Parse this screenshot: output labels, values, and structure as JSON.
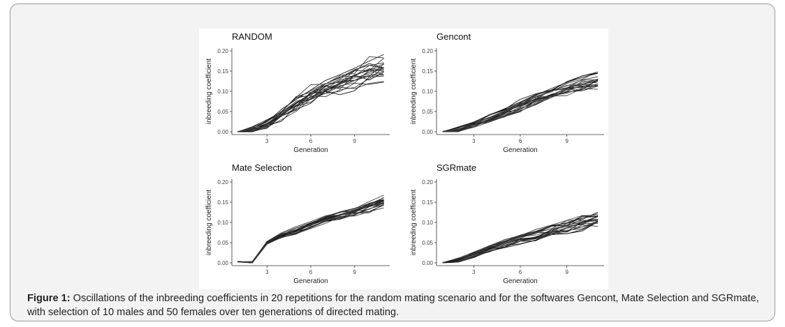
{
  "caption": {
    "label": "Figure 1:",
    "text": " Oscillations of the inbreeding coefficients in 20 repetitions for the random mating scenario and for the softwares Gencont, Mate Selection and SGRmate, with selection of 10 males and 50 females over ten generations of directed mating."
  },
  "chart_data": [
    {
      "type": "line",
      "title": "RANDOM",
      "xlabel": "Generation",
      "ylabel": "inbreeding coefficient",
      "x": [
        1,
        2,
        3,
        4,
        5,
        6,
        7,
        8,
        9,
        10,
        11
      ],
      "xticks": [
        "3",
        "6",
        "9"
      ],
      "yticks": [
        "0.00",
        "0.05",
        "0.10",
        "0.15",
        "0.20"
      ],
      "ylim": [
        0,
        0.2
      ],
      "mean": [
        0,
        0.004,
        0.02,
        0.045,
        0.07,
        0.092,
        0.108,
        0.122,
        0.135,
        0.148,
        0.16
      ],
      "spread": 0.03,
      "n_series": 20
    },
    {
      "type": "line",
      "title": "Gencont",
      "xlabel": "Generation",
      "ylabel": "inbreeding coefficient",
      "x": [
        1,
        2,
        3,
        4,
        5,
        6,
        7,
        8,
        9,
        10,
        11
      ],
      "xticks": [
        "3",
        "6",
        "9"
      ],
      "yticks": [
        "0.00",
        "0.05",
        "0.10",
        "0.15",
        "0.20"
      ],
      "ylim": [
        0,
        0.2
      ],
      "mean": [
        0,
        0.005,
        0.018,
        0.032,
        0.048,
        0.064,
        0.08,
        0.095,
        0.108,
        0.12,
        0.13
      ],
      "spread": 0.018,
      "n_series": 20
    },
    {
      "type": "line",
      "title": "Mate Selection",
      "xlabel": "Generation",
      "ylabel": "inbreeding coefficient",
      "x": [
        1,
        2,
        3,
        4,
        5,
        6,
        7,
        8,
        9,
        10,
        11
      ],
      "xticks": [
        "3",
        "6",
        "9"
      ],
      "yticks": [
        "0.00",
        "0.05",
        "0.10",
        "0.15",
        "0.20"
      ],
      "ylim": [
        0,
        0.2
      ],
      "mean": [
        0.003,
        0.001,
        0.05,
        0.068,
        0.08,
        0.095,
        0.108,
        0.118,
        0.128,
        0.14,
        0.152
      ],
      "spread": 0.012,
      "n_series": 20
    },
    {
      "type": "line",
      "title": "SGRmate",
      "xlabel": "Generation",
      "ylabel": "inbreeding coefficient",
      "x": [
        1,
        2,
        3,
        4,
        5,
        6,
        7,
        8,
        9,
        10,
        11
      ],
      "xticks": [
        "3",
        "6",
        "9"
      ],
      "yticks": [
        "0.00",
        "0.05",
        "0.10",
        "0.15",
        "0.20"
      ],
      "ylim": [
        0,
        0.2
      ],
      "mean": [
        0,
        0.006,
        0.02,
        0.034,
        0.047,
        0.058,
        0.068,
        0.078,
        0.088,
        0.098,
        0.108
      ],
      "spread": 0.015,
      "n_series": 20
    }
  ]
}
